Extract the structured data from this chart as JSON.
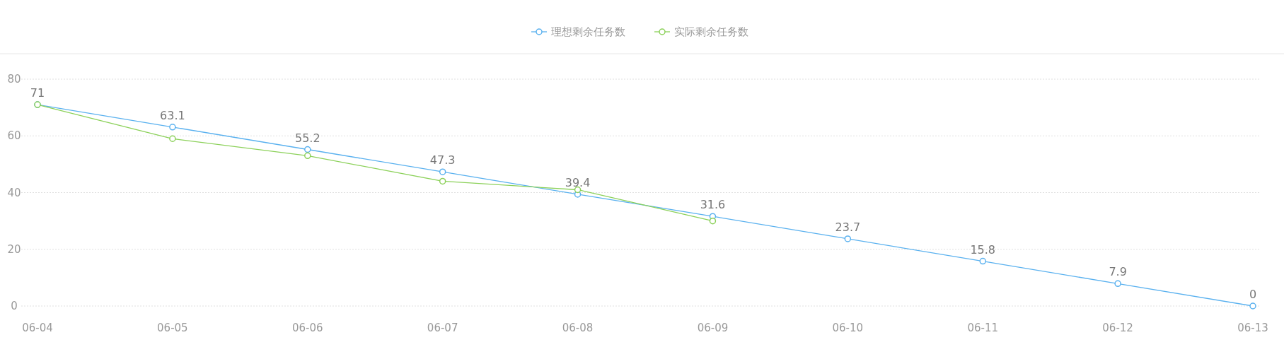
{
  "chart_data": {
    "type": "line",
    "categories": [
      "06-04",
      "06-05",
      "06-06",
      "06-07",
      "06-08",
      "06-09",
      "06-10",
      "06-11",
      "06-12",
      "06-13"
    ],
    "series": [
      {
        "name": "理想剩余任务数",
        "color": "#5ab1ef",
        "values": [
          71,
          63.1,
          55.2,
          47.3,
          39.4,
          31.6,
          23.7,
          15.8,
          7.9,
          0
        ],
        "value_labels": [
          "71",
          "63.1",
          "55.2",
          "47.3",
          "39.4",
          "31.6",
          "23.7",
          "15.8",
          "7.9",
          "0"
        ]
      },
      {
        "name": "实际剩余任务数",
        "color": "#8cd15a",
        "values": [
          71,
          59,
          53,
          44,
          41,
          30,
          null,
          null,
          null,
          null
        ]
      }
    ],
    "ylim": [
      0,
      80
    ],
    "yticks": [
      0,
      20,
      40,
      60,
      80
    ],
    "grid": "y",
    "legend": "top",
    "marker": "circle"
  }
}
